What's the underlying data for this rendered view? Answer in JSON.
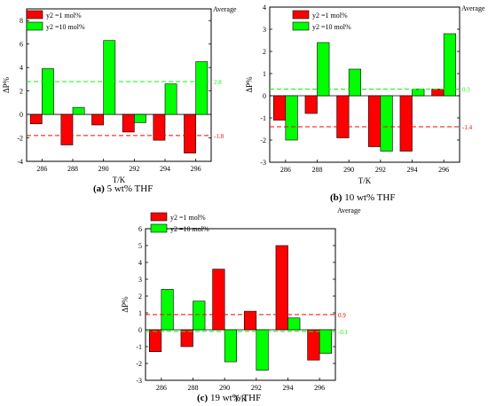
{
  "average_heading": "Average",
  "colors": {
    "red": "#ff0000",
    "green": "#00ff00",
    "axis": "#000000"
  },
  "legend_labels": [
    "y2 =1 mol%",
    "y2 =10 mol%"
  ],
  "chart_data": [
    {
      "type": "bar",
      "caption_letter": "(a)",
      "caption_rest": "5 wt% THF",
      "xlabel": "T/K",
      "ylabel": "ΔP%",
      "categories": [
        "286",
        "288",
        "290",
        "292",
        "294",
        "296"
      ],
      "ylim": [
        -4,
        9
      ],
      "yticks": [
        "-4",
        "-2",
        "0",
        "2",
        "4",
        "6",
        "8"
      ],
      "series": [
        {
          "name": "y2 =1 mol%",
          "color": "#ff0000",
          "values": [
            -0.8,
            -2.6,
            -0.9,
            -1.5,
            -2.2,
            -3.3
          ]
        },
        {
          "name": "y2 =10 mol%",
          "color": "#00ff00",
          "values": [
            3.9,
            0.6,
            6.3,
            -0.7,
            2.6,
            4.5
          ]
        }
      ],
      "averages": [
        {
          "series": "y2 =1 mol%",
          "value": -1.8,
          "label": "-1.8",
          "color": "#ff0000"
        },
        {
          "series": "y2 =10 mol%",
          "value": 2.8,
          "label": "2.8",
          "color": "#00ff00"
        }
      ]
    },
    {
      "type": "bar",
      "caption_letter": "(b)",
      "caption_rest": "10 wt% THF",
      "xlabel": "T/K",
      "ylabel": "ΔP%",
      "categories": [
        "286",
        "288",
        "290",
        "292",
        "294",
        "296"
      ],
      "ylim": [
        -3,
        4
      ],
      "yticks": [
        "-3",
        "-2",
        "-1",
        "0",
        "1",
        "2",
        "3",
        "4"
      ],
      "series": [
        {
          "name": "y2 =1 mol%",
          "color": "#ff0000",
          "values": [
            -1.1,
            -0.8,
            -1.9,
            -2.3,
            -2.5,
            0.3
          ]
        },
        {
          "name": "y2 =10 mol%",
          "color": "#00ff00",
          "values": [
            -2.0,
            2.4,
            1.2,
            -2.5,
            0.3,
            2.8
          ]
        }
      ],
      "averages": [
        {
          "series": "y2 =1 mol%",
          "value": -1.4,
          "label": "-1.4",
          "color": "#ff0000"
        },
        {
          "series": "y2 =10 mol%",
          "value": 0.3,
          "label": "0.3",
          "color": "#00ff00"
        }
      ]
    },
    {
      "type": "bar",
      "caption_letter": "(c)",
      "caption_rest": "19 wt% THF",
      "xlabel": "T/K",
      "ylabel": "ΔP%",
      "categories": [
        "286",
        "288",
        "290",
        "292",
        "294",
        "296"
      ],
      "ylim": [
        -3,
        6
      ],
      "yticks": [
        "-3",
        "-2",
        "-1",
        "0",
        "1",
        "2",
        "3",
        "4",
        "5",
        "6"
      ],
      "series": [
        {
          "name": "y2 =1 mol%",
          "color": "#ff0000",
          "values": [
            -1.3,
            -1.0,
            3.6,
            1.1,
            5.0,
            -1.8
          ]
        },
        {
          "name": "y2 =10 mol%",
          "color": "#00ff00",
          "values": [
            2.4,
            1.7,
            -1.9,
            -2.4,
            0.7,
            -1.4
          ]
        }
      ],
      "averages": [
        {
          "series": "y2 =1 mol%",
          "value": 0.9,
          "label": "0.9",
          "color": "#ff0000"
        },
        {
          "series": "y2 =10 mol%",
          "value": -0.1,
          "label": "-0.1",
          "color": "#00ff00"
        }
      ]
    }
  ]
}
